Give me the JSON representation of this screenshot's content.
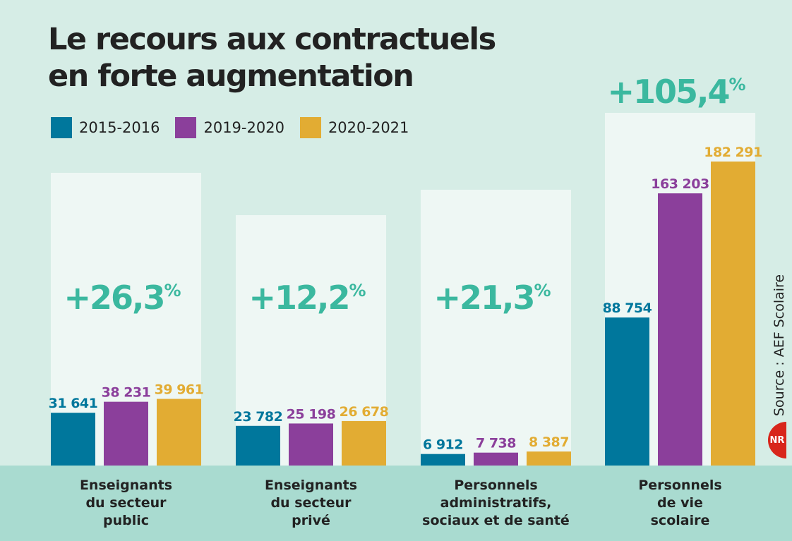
{
  "title_line1": "Le recours aux contractuels",
  "title_line2": "en forte augmentation",
  "source": "Source : AEF Scolaire",
  "logo_text": "NR",
  "colors": {
    "background": "#d6ede6",
    "panel": "#eef7f4",
    "band": "#a9dbd0",
    "pct": "#3bb89f",
    "series": [
      "#00779c",
      "#8b3f9b",
      "#e2ac33"
    ]
  },
  "chart_data": {
    "type": "bar",
    "title": "Le recours aux contractuels en forte augmentation",
    "categories": [
      [
        "Enseignants",
        "du secteur",
        "public"
      ],
      [
        "Enseignants",
        "du secteur",
        "privé"
      ],
      [
        "Personnels",
        "administratifs,",
        "sociaux et de santé"
      ],
      [
        "Personnels",
        "de vie",
        "scolaire"
      ]
    ],
    "series": [
      {
        "name": "2015-2016",
        "values": [
          31641,
          23782,
          6912,
          88754
        ],
        "labels": [
          "31 641",
          "23 782",
          "6 912",
          "88 754"
        ]
      },
      {
        "name": "2019-2020",
        "values": [
          38231,
          25198,
          7738,
          163203
        ],
        "labels": [
          "38 231",
          "25 198",
          "7 738",
          "163 203"
        ]
      },
      {
        "name": "2020-2021",
        "values": [
          39961,
          26678,
          8387,
          182291
        ],
        "labels": [
          "39 961",
          "26 678",
          "8 387",
          "182 291"
        ]
      }
    ],
    "growth": [
      {
        "value": "+26,3",
        "unit": "%"
      },
      {
        "value": "+12,2",
        "unit": "%"
      },
      {
        "value": "+21,3",
        "unit": "%"
      },
      {
        "value": "+105,4",
        "unit": "%"
      }
    ],
    "legend_position": "top-left",
    "grid": false
  }
}
